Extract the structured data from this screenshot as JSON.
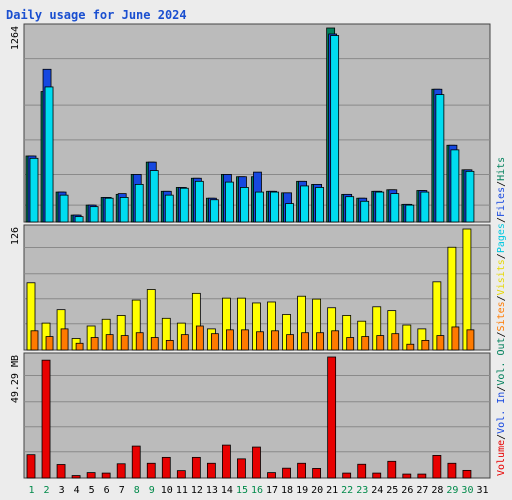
{
  "page": {
    "title": "Daily usage for June 2024"
  },
  "colors": {
    "background": "#ececec",
    "panel": "#bbbbbb",
    "grid": "#8a8a8a",
    "hits": "#00805c",
    "files": "#1648e0",
    "pages": "#00dcf0",
    "visits": "#ffff00",
    "sites": "#ff7a00",
    "volume": "#e80000",
    "weekend_day": "#008a4a",
    "weekday": "#000000"
  },
  "chart_data": {
    "type": "bar",
    "title": "Daily usage for June 2024",
    "categories": [
      "1",
      "2",
      "3",
      "4",
      "5",
      "6",
      "7",
      "8",
      "9",
      "10",
      "11",
      "12",
      "13",
      "14",
      "15",
      "16",
      "17",
      "18",
      "19",
      "20",
      "21",
      "22",
      "23",
      "24",
      "25",
      "26",
      "27",
      "28",
      "29",
      "30",
      "31"
    ],
    "weekend_days": [
      "1",
      "2",
      "8",
      "9",
      "15",
      "16",
      "22",
      "23",
      "29",
      "30"
    ],
    "panels": [
      {
        "id": "hits",
        "ylabel": "1264",
        "ymax": 1264,
        "series": [
          {
            "name": "Hits",
            "values": [
              430,
              850,
              195,
              45,
              110,
              160,
              180,
              310,
              390,
              200,
              225,
              285,
              155,
              310,
              295,
              295,
              200,
              190,
              265,
              245,
              1264,
              180,
              155,
              200,
              210,
              115,
              205,
              865,
              500,
              340,
              0
            ]
          },
          {
            "name": "Files",
            "values": [
              430,
              995,
              195,
              45,
              110,
              160,
              185,
              310,
              390,
              200,
              225,
              285,
              155,
              310,
              295,
              325,
              200,
              190,
              265,
              245,
              1225,
              180,
              155,
              200,
              210,
              115,
              205,
              865,
              500,
              340,
              0
            ]
          },
          {
            "name": "Pages",
            "values": [
              415,
              880,
              175,
              35,
              100,
              155,
              160,
              245,
              335,
              175,
              220,
              265,
              145,
              260,
              225,
              195,
              195,
              120,
              235,
              225,
              1215,
              165,
              135,
              195,
              185,
              110,
              195,
              830,
              470,
              330,
              0
            ]
          }
        ]
      },
      {
        "id": "visits",
        "ylabel": "126",
        "ymax": 126,
        "series": [
          {
            "name": "Visits",
            "values": [
              70,
              28,
              42,
              12,
              25,
              32,
              36,
              52,
              63,
              33,
              28,
              59,
              22,
              54,
              54,
              49,
              50,
              37,
              56,
              53,
              44,
              36,
              30,
              45,
              41,
              26,
              22,
              71,
              107,
              126,
              0
            ]
          },
          {
            "name": "Sites",
            "values": [
              20,
              14,
              22,
              7,
              13,
              16,
              15,
              18,
              13,
              10,
              16,
              25,
              17,
              21,
              21,
              19,
              20,
              16,
              18,
              18,
              20,
              13,
              14,
              15,
              17,
              6,
              10,
              15,
              24,
              21,
              0
            ]
          }
        ]
      },
      {
        "id": "volume",
        "ylabel": "49.29 MB",
        "ymax": 49.29,
        "series": [
          {
            "name": "Volume",
            "values": [
              9.5,
              48.0,
              5.5,
              1.0,
              2.2,
              2.0,
              5.8,
              13.0,
              6.0,
              8.4,
              3.0,
              8.4,
              6.0,
              13.4,
              7.8,
              12.6,
              2.2,
              4.0,
              6.0,
              3.9,
              49.29,
              2.0,
              5.6,
              2.0,
              6.8,
              1.6,
              1.6,
              9.2,
              6.0,
              3.1,
              0
            ]
          }
        ]
      }
    ],
    "legend_right": [
      {
        "text": "Volume",
        "color": "#e80000"
      },
      {
        "text": "/",
        "color": "#000000"
      },
      {
        "text": "Vol. In",
        "color": "#1648e0"
      },
      {
        "text": "/",
        "color": "#000000"
      },
      {
        "text": "Vol. Out",
        "color": "#00805c"
      },
      {
        "text": "/",
        "color": "#000000"
      },
      {
        "text": "Sites",
        "color": "#ff7a00"
      },
      {
        "text": "/",
        "color": "#000000"
      },
      {
        "text": "Visits",
        "color": "#e6d800"
      },
      {
        "text": "/",
        "color": "#000000"
      },
      {
        "text": "Pages",
        "color": "#00c8e0"
      },
      {
        "text": "/",
        "color": "#000000"
      },
      {
        "text": "Files",
        "color": "#1648e0"
      },
      {
        "text": "/",
        "color": "#000000"
      },
      {
        "text": "Hits",
        "color": "#00805c"
      }
    ]
  }
}
